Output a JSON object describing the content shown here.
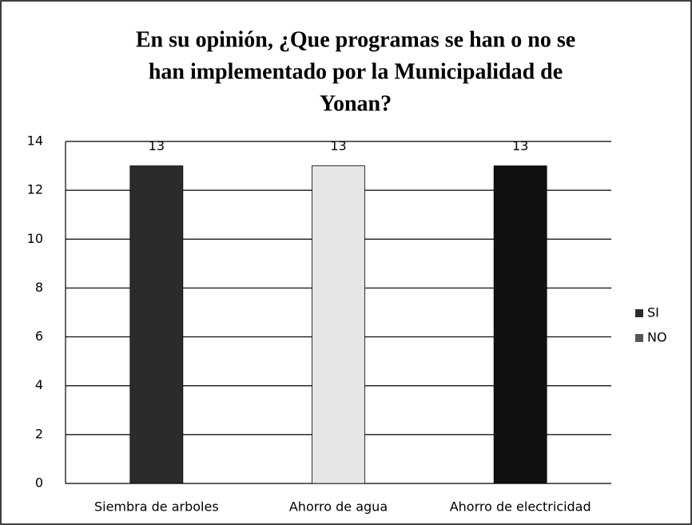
{
  "chart_data": {
    "type": "bar",
    "title": [
      "En su opinión, ¿Que programas se han o no se",
      "han implementado por la Municipalidad de",
      "Yonan?"
    ],
    "categories": [
      "Siembra de arboles",
      "Ahorro de agua",
      "Ahorro de electricidad"
    ],
    "series": [
      {
        "name": "SI",
        "color": "#2b2b2b",
        "colors": [
          "#2b2b2b",
          "#e6e6e6",
          "#111111"
        ],
        "values": [
          13,
          13,
          13
        ]
      },
      {
        "name": "NO",
        "color": "#555555",
        "values": [
          0,
          0,
          0
        ]
      }
    ],
    "ylim": [
      0,
      14
    ],
    "yticks": [
      0,
      2,
      4,
      6,
      8,
      10,
      12,
      14
    ],
    "grid": true,
    "legend": "right"
  }
}
